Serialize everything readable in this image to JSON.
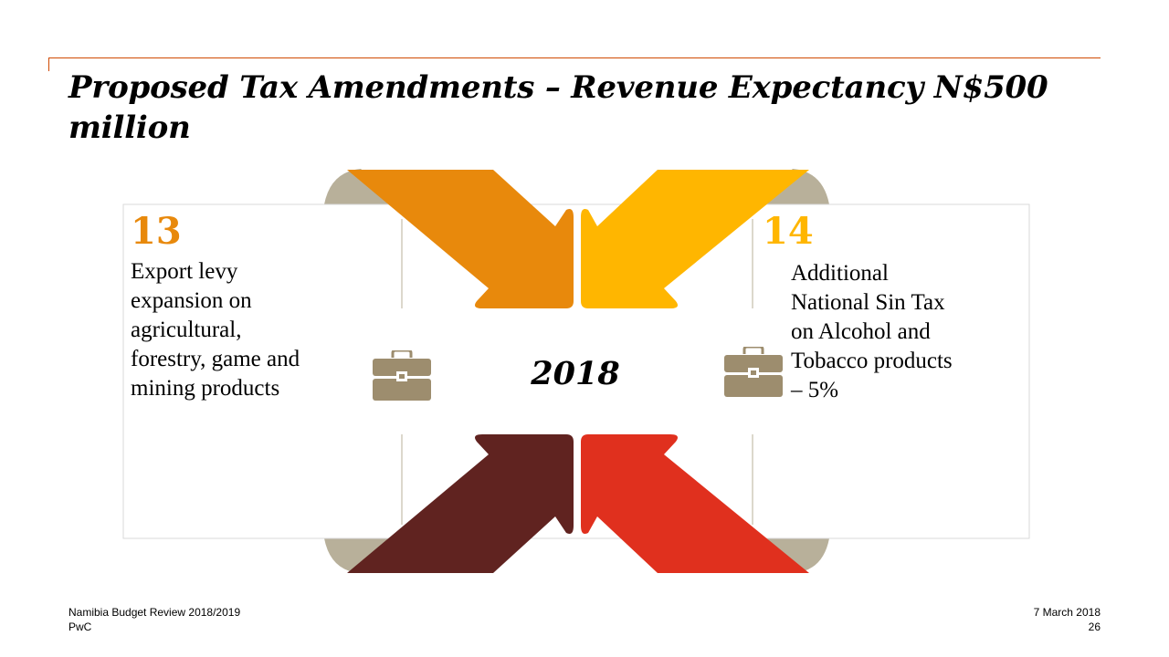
{
  "slide": {
    "title": "Proposed Tax Amendments – Revenue Expectancy N$500 million",
    "center_label": "2018"
  },
  "items": [
    {
      "number": "13",
      "text": "Export levy\nexpansion on\nagricultural,\nforestry, game and\nmining products",
      "number_color": "#e8890c",
      "icon": "briefcase-icon"
    },
    {
      "number": "14",
      "text": "Additional\nNational Sin Tax\non Alcohol and\nTobacco products\n– 5%",
      "number_color": "#ffb600",
      "icon": "briefcase-icon"
    }
  ],
  "arrows": [
    {
      "name": "top-left-arrow",
      "color": "#e8890c"
    },
    {
      "name": "top-right-arrow",
      "color": "#ffb600"
    },
    {
      "name": "bottom-left-arrow",
      "color": "#602320"
    },
    {
      "name": "bottom-right-arrow",
      "color": "#e0301e"
    }
  ],
  "colors": {
    "accent": "#d04a02",
    "neutral_fold": "#b8b09a",
    "briefcase": "#9d8d6e",
    "border": "#d9d9d9"
  },
  "footer": {
    "report_name": "Namibia Budget Review 2018/2019",
    "company": "PwC",
    "date": "7 March 2018",
    "page_number": "26"
  }
}
